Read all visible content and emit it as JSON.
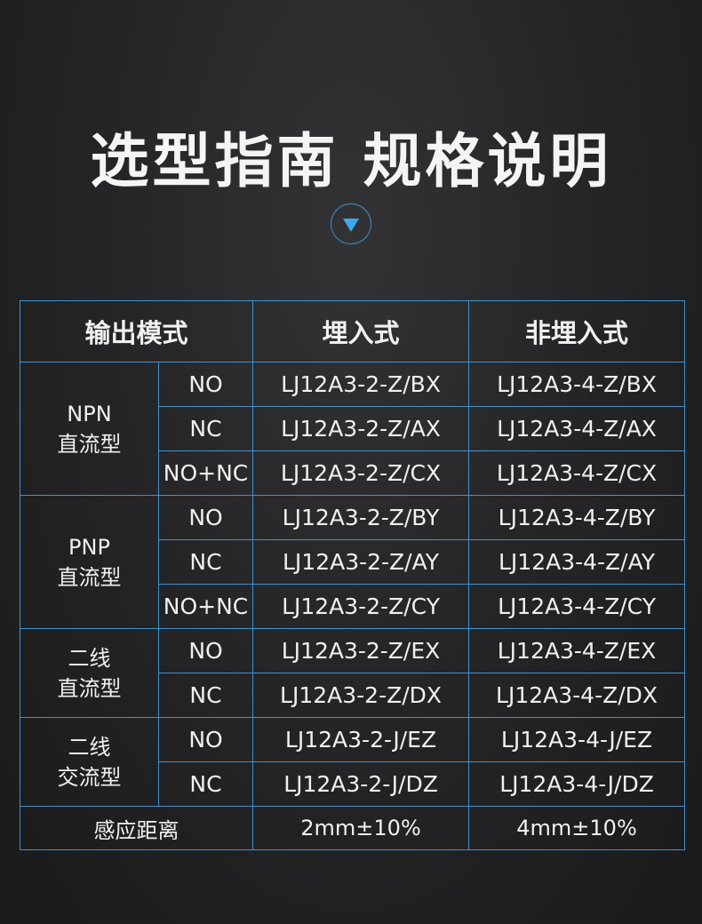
{
  "title": "选型指南 规格说明",
  "icon": "triangle-down-icon",
  "colors": {
    "border": "#3f93cf",
    "accent": "#3aa8ef"
  },
  "table": {
    "headers": [
      "输出模式",
      "埋入式",
      "非埋入式"
    ],
    "groups": [
      {
        "name_l1": "NPN",
        "name_l2": "直流型",
        "rows": [
          {
            "mode": "NO",
            "embedded": "LJ12A3-2-Z/BX",
            "non_embedded": "LJ12A3-4-Z/BX"
          },
          {
            "mode": "NC",
            "embedded": "LJ12A3-2-Z/AX",
            "non_embedded": "LJ12A3-4-Z/AX"
          },
          {
            "mode": "NO+NC",
            "embedded": "LJ12A3-2-Z/CX",
            "non_embedded": "LJ12A3-4-Z/CX"
          }
        ]
      },
      {
        "name_l1": "PNP",
        "name_l2": "直流型",
        "rows": [
          {
            "mode": "NO",
            "embedded": "LJ12A3-2-Z/BY",
            "non_embedded": "LJ12A3-4-Z/BY"
          },
          {
            "mode": "NC",
            "embedded": "LJ12A3-2-Z/AY",
            "non_embedded": "LJ12A3-4-Z/AY"
          },
          {
            "mode": "NO+NC",
            "embedded": "LJ12A3-2-Z/CY",
            "non_embedded": "LJ12A3-4-Z/CY"
          }
        ]
      },
      {
        "name_l1": "二线",
        "name_l2": "直流型",
        "rows": [
          {
            "mode": "NO",
            "embedded": "LJ12A3-2-Z/EX",
            "non_embedded": "LJ12A3-4-Z/EX"
          },
          {
            "mode": "NC",
            "embedded": "LJ12A3-2-Z/DX",
            "non_embedded": "LJ12A3-4-Z/DX"
          }
        ]
      },
      {
        "name_l1": "二线",
        "name_l2": "交流型",
        "rows": [
          {
            "mode": "NO",
            "embedded": "LJ12A3-2-J/EZ",
            "non_embedded": "LJ12A3-4-J/EZ"
          },
          {
            "mode": "NC",
            "embedded": "LJ12A3-2-J/DZ",
            "non_embedded": "LJ12A3-4-J/DZ"
          }
        ]
      }
    ],
    "footer": {
      "label": "感应距离",
      "embedded": "2mm±10%",
      "non_embedded": "4mm±10%"
    }
  }
}
